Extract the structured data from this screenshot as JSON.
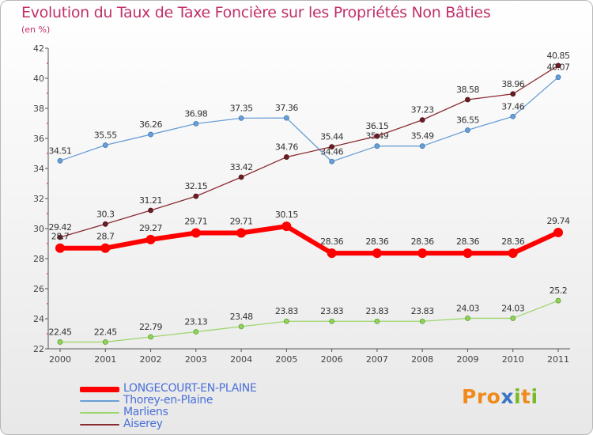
{
  "title": "Evolution du Taux de Taxe Foncière sur les Propriétés Non Bâties",
  "subtitle": "(en %)",
  "logo": {
    "text": "Proxiti",
    "colors": [
      "#f08a1c",
      "#3a74c4",
      "#7ab826"
    ]
  },
  "chart_data": {
    "type": "line",
    "title": "Evolution du Taux de Taxe Foncière sur les Propriétés Non Bâties",
    "ylabel": "(en %)",
    "xlabel": "",
    "x": [
      "2000",
      "2001",
      "2002",
      "2003",
      "2004",
      "2005",
      "2006",
      "2007",
      "2008",
      "2009",
      "2010",
      "2011"
    ],
    "ylim": [
      22,
      42
    ],
    "yticks": [
      "22",
      "24",
      "26",
      "28",
      "30",
      "32",
      "34",
      "36",
      "38",
      "40",
      "42"
    ],
    "grid": false,
    "legend": "bottom-left",
    "series": [
      {
        "name": "LONGECOURT-EN-PLAINE",
        "color": "#ff0000",
        "values": [
          28.7,
          28.7,
          29.27,
          29.71,
          29.71,
          30.15,
          28.36,
          28.36,
          28.36,
          28.36,
          28.36,
          29.74
        ],
        "labels": [
          "28.7",
          "28.7",
          "29.27",
          "29.71",
          "29.71",
          "30.15",
          "28.36",
          "28.36",
          "28.36",
          "28.36",
          "28.36",
          "29.74"
        ]
      },
      {
        "name": "Thorey-en-Plaine",
        "color": "#6a9fd4",
        "values": [
          34.51,
          35.55,
          36.26,
          36.98,
          37.35,
          37.36,
          34.46,
          35.49,
          35.49,
          36.55,
          37.46,
          40.07
        ],
        "labels": [
          "34.51",
          "35.55",
          "36.26",
          "36.98",
          "37.35",
          "37.36",
          "34.46",
          "35.49",
          "35.49",
          "36.55",
          "37.46",
          "40.07"
        ]
      },
      {
        "name": "Marliens",
        "color": "#9ed66e",
        "values": [
          22.45,
          22.45,
          22.79,
          23.13,
          23.48,
          23.83,
          23.83,
          23.83,
          23.83,
          24.03,
          24.03,
          25.2
        ],
        "labels": [
          "22.45",
          "22.45",
          "22.79",
          "23.13",
          "23.48",
          "23.83",
          "23.83",
          "23.83",
          "23.83",
          "24.03",
          "24.03",
          "25.2"
        ]
      },
      {
        "name": "Aiserey",
        "color": "#8a2a33",
        "values": [
          29.42,
          30.3,
          31.21,
          32.15,
          33.42,
          34.76,
          35.44,
          36.15,
          37.23,
          38.58,
          38.96,
          40.85
        ],
        "labels": [
          "29.42",
          "30.3",
          "31.21",
          "32.15",
          "33.42",
          "34.76",
          "35.44",
          "36.15",
          "37.23",
          "38.58",
          "38.96",
          "40.85"
        ]
      }
    ]
  }
}
